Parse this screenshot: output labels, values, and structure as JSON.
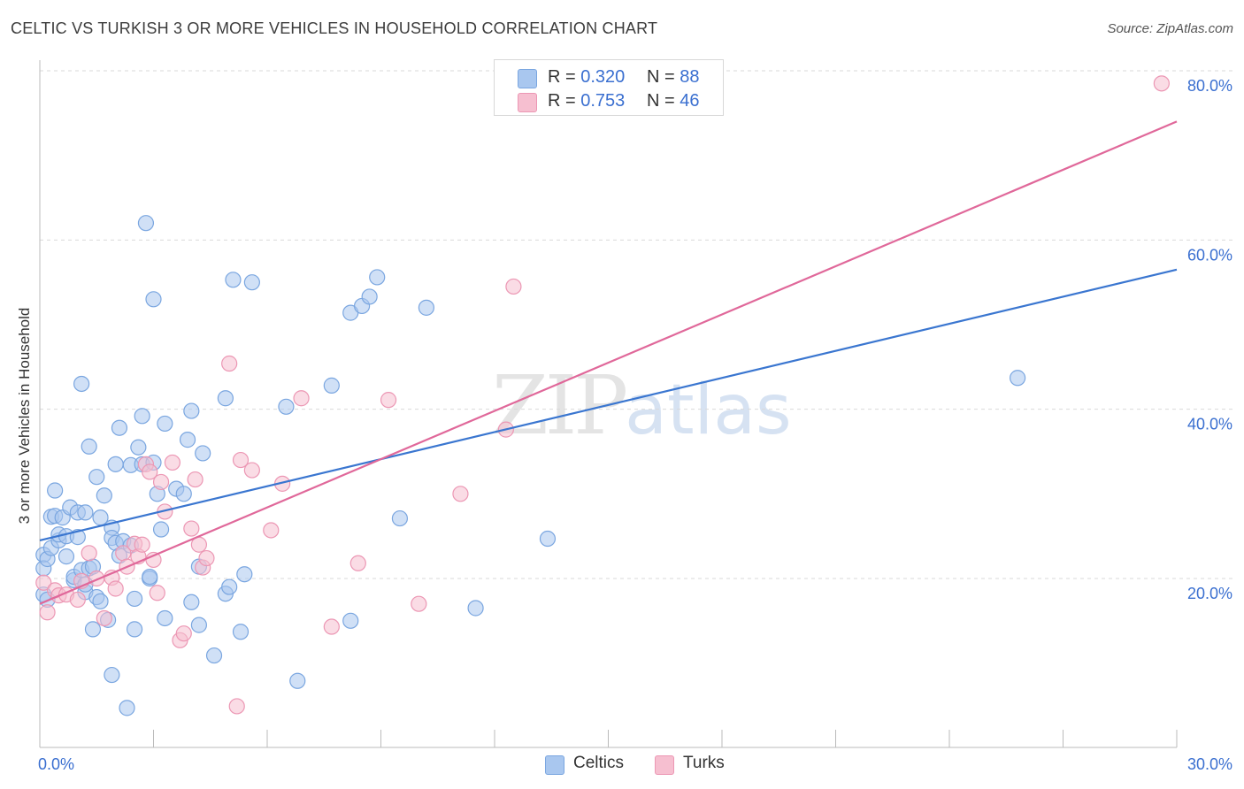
{
  "header": {
    "title": "CELTIC VS TURKISH 3 OR MORE VEHICLES IN HOUSEHOLD CORRELATION CHART",
    "source": "Source: ZipAtlas.com"
  },
  "watermark": {
    "zip": "ZIP",
    "atlas": "atlas"
  },
  "legend": {
    "rows": [
      {
        "r_label": "R = ",
        "r_value": "0.320",
        "n_label": "N = ",
        "n_value": "88"
      },
      {
        "r_label": "R = ",
        "r_value": "0.753",
        "n_label": "N = ",
        "n_value": "46"
      }
    ]
  },
  "bottom_legend": {
    "celtics": "Celtics",
    "turks": "Turks"
  },
  "colors": {
    "celtics_fill": "#a9c7ef",
    "celtics_stroke": "#7aa6e0",
    "celtics_line": "#3a76d0",
    "turks_fill": "#f6bfd0",
    "turks_stroke": "#ec97b4",
    "turks_line": "#e0689a",
    "tick_label": "#3a6fd0",
    "grid": "#d9d9d9"
  },
  "chart_data": {
    "type": "scatter",
    "title": "CELTIC VS TURKISH 3 OR MORE VEHICLES IN HOUSEHOLD CORRELATION CHART",
    "xlabel": "",
    "ylabel": "3 or more Vehicles in Household",
    "xlim": [
      0,
      30
    ],
    "ylim": [
      0,
      82
    ],
    "x_tick_labels": [
      {
        "value": 0,
        "label": "0.0%"
      },
      {
        "value": 30,
        "label": "30.0%"
      }
    ],
    "y_tick_labels": [
      {
        "value": 20,
        "label": "20.0%"
      },
      {
        "value": 40,
        "label": "40.0%"
      },
      {
        "value": 60,
        "label": "60.0%"
      },
      {
        "value": 80,
        "label": "80.0%"
      }
    ],
    "y_grid": [
      20,
      40,
      60,
      80
    ],
    "series": [
      {
        "name": "Celtics",
        "r": 0.32,
        "n": 88,
        "trend": {
          "x": [
            0,
            30
          ],
          "y": [
            24.5,
            56.5
          ]
        },
        "points": [
          [
            0.1,
            22.8
          ],
          [
            0.1,
            21.2
          ],
          [
            0.2,
            22.3
          ],
          [
            0.3,
            23.6
          ],
          [
            0.3,
            27.3
          ],
          [
            0.4,
            27.4
          ],
          [
            0.4,
            30.4
          ],
          [
            0.5,
            24.5
          ],
          [
            0.5,
            25.2
          ],
          [
            0.6,
            27.2
          ],
          [
            0.7,
            25.0
          ],
          [
            0.7,
            22.6
          ],
          [
            0.8,
            28.4
          ],
          [
            0.9,
            19.8
          ],
          [
            0.9,
            20.2
          ],
          [
            1.0,
            27.8
          ],
          [
            1.0,
            24.9
          ],
          [
            1.1,
            43.0
          ],
          [
            1.1,
            21.0
          ],
          [
            1.2,
            27.8
          ],
          [
            1.2,
            18.4
          ],
          [
            1.3,
            21.2
          ],
          [
            1.3,
            35.6
          ],
          [
            1.4,
            14.0
          ],
          [
            1.4,
            21.4
          ],
          [
            1.5,
            32.0
          ],
          [
            1.5,
            17.8
          ],
          [
            1.6,
            27.2
          ],
          [
            1.6,
            17.3
          ],
          [
            1.7,
            29.8
          ],
          [
            1.8,
            15.1
          ],
          [
            1.9,
            26.0
          ],
          [
            1.9,
            24.8
          ],
          [
            1.9,
            8.6
          ],
          [
            2.0,
            33.5
          ],
          [
            2.0,
            24.2
          ],
          [
            2.1,
            22.7
          ],
          [
            2.1,
            37.8
          ],
          [
            2.2,
            24.4
          ],
          [
            2.3,
            4.7
          ],
          [
            2.4,
            33.4
          ],
          [
            2.4,
            23.9
          ],
          [
            2.5,
            14.0
          ],
          [
            2.5,
            17.6
          ],
          [
            2.6,
            35.5
          ],
          [
            2.7,
            33.5
          ],
          [
            2.7,
            39.2
          ],
          [
            2.8,
            62.0
          ],
          [
            2.9,
            20.0
          ],
          [
            2.9,
            20.2
          ],
          [
            3.0,
            33.7
          ],
          [
            3.0,
            53.0
          ],
          [
            3.1,
            30.0
          ],
          [
            3.2,
            25.8
          ],
          [
            3.3,
            38.3
          ],
          [
            3.3,
            15.3
          ],
          [
            3.6,
            30.6
          ],
          [
            3.8,
            30.0
          ],
          [
            3.9,
            36.4
          ],
          [
            4.0,
            39.8
          ],
          [
            4.0,
            17.2
          ],
          [
            4.2,
            21.4
          ],
          [
            4.2,
            14.5
          ],
          [
            4.3,
            34.8
          ],
          [
            4.6,
            10.9
          ],
          [
            4.9,
            18.2
          ],
          [
            4.9,
            41.3
          ],
          [
            5.0,
            19.0
          ],
          [
            5.1,
            55.3
          ],
          [
            5.3,
            13.7
          ],
          [
            5.4,
            20.5
          ],
          [
            5.6,
            55.0
          ],
          [
            6.5,
            40.3
          ],
          [
            6.8,
            7.9
          ],
          [
            7.7,
            42.8
          ],
          [
            8.2,
            51.4
          ],
          [
            8.2,
            15.0
          ],
          [
            8.5,
            52.2
          ],
          [
            8.7,
            53.3
          ],
          [
            8.9,
            55.6
          ],
          [
            9.5,
            27.1
          ],
          [
            10.2,
            52.0
          ],
          [
            11.5,
            16.5
          ],
          [
            13.4,
            24.7
          ],
          [
            25.8,
            43.7
          ],
          [
            0.1,
            18.1
          ],
          [
            0.2,
            17.5
          ],
          [
            1.2,
            19.3
          ]
        ]
      },
      {
        "name": "Turks",
        "r": 0.753,
        "n": 46,
        "trend": {
          "x": [
            0,
            30
          ],
          "y": [
            17.0,
            74.0
          ]
        },
        "points": [
          [
            0.1,
            19.5
          ],
          [
            0.2,
            16.0
          ],
          [
            0.4,
            18.6
          ],
          [
            0.5,
            18.0
          ],
          [
            0.7,
            18.1
          ],
          [
            1.0,
            17.5
          ],
          [
            1.1,
            19.7
          ],
          [
            1.3,
            23.0
          ],
          [
            1.5,
            20.0
          ],
          [
            1.7,
            15.3
          ],
          [
            1.9,
            20.1
          ],
          [
            2.0,
            18.8
          ],
          [
            2.2,
            23.0
          ],
          [
            2.3,
            21.4
          ],
          [
            2.5,
            24.1
          ],
          [
            2.6,
            22.6
          ],
          [
            2.7,
            24.0
          ],
          [
            2.8,
            33.5
          ],
          [
            2.9,
            32.6
          ],
          [
            3.0,
            22.2
          ],
          [
            3.1,
            18.3
          ],
          [
            3.2,
            31.4
          ],
          [
            3.3,
            27.9
          ],
          [
            3.5,
            33.7
          ],
          [
            3.7,
            12.7
          ],
          [
            3.8,
            13.5
          ],
          [
            4.0,
            25.9
          ],
          [
            4.1,
            31.7
          ],
          [
            4.2,
            24.0
          ],
          [
            4.3,
            21.3
          ],
          [
            4.4,
            22.4
          ],
          [
            5.0,
            45.4
          ],
          [
            5.2,
            4.9
          ],
          [
            5.3,
            34.0
          ],
          [
            5.6,
            32.8
          ],
          [
            6.1,
            25.7
          ],
          [
            6.4,
            31.2
          ],
          [
            6.9,
            41.3
          ],
          [
            7.7,
            14.3
          ],
          [
            8.4,
            21.8
          ],
          [
            9.2,
            41.1
          ],
          [
            10.0,
            17.0
          ],
          [
            11.1,
            30.0
          ],
          [
            12.3,
            37.6
          ],
          [
            12.5,
            54.5
          ],
          [
            29.6,
            78.5
          ]
        ]
      }
    ]
  }
}
